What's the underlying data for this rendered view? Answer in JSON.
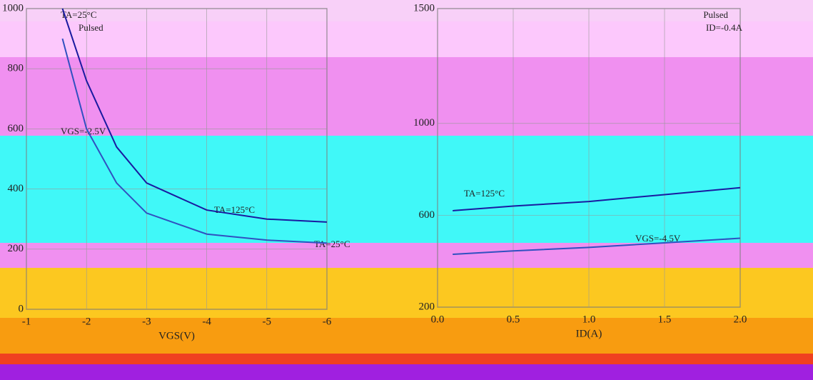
{
  "chart_data": [
    {
      "type": "line",
      "x_label": "VGS(V)",
      "xlim": [
        -1,
        -6
      ],
      "xticks": [
        -1,
        -2,
        -3,
        -4,
        -5,
        -6
      ],
      "ylim": [
        0,
        1000
      ],
      "yticks": [
        0,
        200,
        400,
        600,
        800,
        1000
      ],
      "annotations": [
        "TA=25°C",
        "Pulsed",
        "VGS=-2.5V",
        "TA=125°C",
        "TA=25°C"
      ],
      "series": [
        {
          "name": "TA=125°C",
          "color": "#1a1aa0",
          "x": [
            -1.6,
            -2,
            -2.5,
            -3,
            -4,
            -5,
            -6
          ],
          "values": [
            1000,
            760,
            540,
            420,
            330,
            300,
            290
          ]
        },
        {
          "name": "TA=25°C",
          "color": "#3050c0",
          "x": [
            -1.6,
            -2,
            -2.5,
            -3,
            -4,
            -5,
            -6
          ],
          "values": [
            900,
            600,
            420,
            320,
            250,
            230,
            220
          ]
        }
      ]
    },
    {
      "type": "line",
      "x_label": "ID(A)",
      "xlim": [
        0,
        2
      ],
      "xticks": [
        {
          "value": 0,
          "label": "0.0"
        },
        {
          "value": 0.5,
          "label": "0.5"
        },
        {
          "value": 1,
          "label": "1.0"
        },
        {
          "value": 1.5,
          "label": "1.5"
        },
        {
          "value": 2,
          "label": "2.0"
        }
      ],
      "ylim": [
        200,
        1500
      ],
      "yticks": [
        200,
        600,
        1000,
        1500
      ],
      "annotations": [
        "Pulsed",
        "ID=-0.4A",
        "TA=125°C",
        "VGS=-4.5V"
      ],
      "series": [
        {
          "name": "TA=125°C",
          "color": "#1a1aa0",
          "x": [
            0.1,
            0.5,
            1,
            1.5,
            2
          ],
          "values": [
            620,
            640,
            660,
            690,
            720
          ]
        },
        {
          "name": "TA=25°C",
          "color": "#3050c0",
          "x": [
            0.1,
            0.5,
            1,
            1.5,
            2
          ],
          "values": [
            430,
            445,
            460,
            480,
            500
          ]
        }
      ]
    }
  ]
}
